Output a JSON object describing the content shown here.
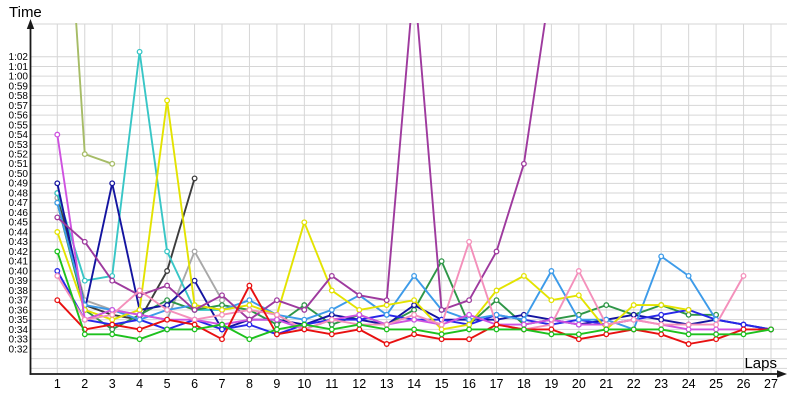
{
  "chart_data": {
    "type": "line",
    "title": "",
    "xlabel": "Laps",
    "ylabel": "Time",
    "x_axis": {
      "min": 1,
      "max": 27,
      "tick_labels": [
        "1",
        "2",
        "3",
        "4",
        "5",
        "6",
        "7",
        "8",
        "9",
        "10",
        "11",
        "12",
        "13",
        "14",
        "15",
        "16",
        "17",
        "18",
        "19",
        "20",
        "21",
        "22",
        "23",
        "24",
        "25",
        "26",
        "27"
      ]
    },
    "y_axis": {
      "unit": "m:ss",
      "min_seconds": 32,
      "max_seconds": 62,
      "step_seconds": 1,
      "tick_labels_bottom_to_top": [
        "0:32",
        "0:33",
        "0:34",
        "0:35",
        "0:36",
        "0:37",
        "0:38",
        "0:39",
        "0:40",
        "0:41",
        "0:42",
        "0:43",
        "0:44",
        "0:45",
        "0:46",
        "0:47",
        "0:48",
        "0:49",
        "0:50",
        "0:51",
        "0:52",
        "0:53",
        "0:54",
        "0:55",
        "0:56",
        "0:57",
        "0:58",
        "0:59",
        "1:00",
        "1:01",
        "1:02"
      ]
    },
    "grid": {
      "horizontal": true,
      "vertical": true,
      "color": "#d6d6d6",
      "extra_unlabeled_rows_seconds": [
        31,
        30
      ]
    },
    "legend": "none",
    "note": "lap-time chart; values in seconds; values above 62 run off the top of the plot; series start at lap 1 and may end early",
    "series": [
      {
        "name": "gray",
        "color": "#a8a8a8",
        "values": [
          47.5,
          37,
          36,
          35.5,
          35,
          42,
          37
        ]
      },
      {
        "name": "dark-gray",
        "color": "#3c3c3c",
        "values": [
          48,
          36.5,
          35.5,
          35,
          40,
          49.5
        ]
      },
      {
        "name": "olive",
        "color": "#a6bc66",
        "values": [
          95,
          52,
          51
        ]
      },
      {
        "name": "cyan",
        "color": "#38c6c6",
        "values": [
          48,
          39,
          39.5,
          62.5,
          42,
          36,
          36
        ]
      },
      {
        "name": "dark-green",
        "color": "#2e9647",
        "values": [
          47,
          36,
          34,
          35.5,
          37,
          36,
          36.5,
          36,
          34.5,
          36.5,
          34.5,
          35.5,
          34.5,
          36,
          41,
          34.5,
          37,
          34.5,
          35,
          35.5,
          36.5,
          35.5,
          36.5,
          35.5,
          35.5
        ]
      },
      {
        "name": "navy",
        "color": "#1414a0",
        "values": [
          49,
          36,
          49,
          36,
          36.5,
          39,
          34,
          35,
          35,
          34.5,
          35.5,
          35,
          34.5,
          36.5,
          35,
          35,
          35,
          35.5,
          35,
          34.5,
          35,
          35.5,
          35,
          34.5,
          35,
          34.5,
          34
        ]
      },
      {
        "name": "blue",
        "color": "#2727e8",
        "values": [
          40,
          35,
          34.5,
          35,
          34,
          35,
          34,
          34.5,
          33.5,
          34.5,
          35,
          35,
          35.5,
          35,
          35,
          34.5,
          35.5,
          35,
          34.5,
          35,
          34.5,
          35,
          35.5,
          36,
          35,
          34.5,
          34
        ]
      },
      {
        "name": "light-blue",
        "color": "#3d9be9",
        "values": [
          47,
          36.5,
          36,
          35,
          36,
          36.5,
          36,
          37,
          35.5,
          35,
          36,
          37.5,
          35.5,
          39.5,
          36,
          35,
          35.5,
          35,
          40,
          35,
          35,
          34,
          41.5,
          39.5,
          35
        ]
      },
      {
        "name": "yellow",
        "color": "#e3e300",
        "values": [
          44,
          36,
          35,
          36,
          57.5,
          36.5,
          36,
          36.5,
          35.5,
          45,
          38,
          36,
          36.5,
          37,
          34,
          34.5,
          38,
          39.5,
          37,
          37.5,
          34,
          36.5,
          36.5,
          36
        ]
      },
      {
        "name": "violet",
        "color": "#cf52e0",
        "values": [
          54,
          35,
          36,
          35.5,
          35,
          35,
          34.5,
          35,
          35,
          34,
          35,
          35.5,
          34.5,
          35,
          34.5,
          35.5,
          34.5,
          34.5,
          35,
          34.5,
          34.5,
          35,
          34.5,
          34,
          34,
          34
        ]
      },
      {
        "name": "purple",
        "color": "#9e3a9e",
        "values": [
          45.5,
          43,
          39,
          37.5,
          38.5,
          36,
          37.5,
          35,
          37,
          36,
          39.5,
          37.5,
          37,
          70,
          36,
          37,
          42,
          51,
          70
        ]
      },
      {
        "name": "pink",
        "color": "#f490bb",
        "values": [
          39.5,
          35,
          35.5,
          38,
          36,
          35,
          35.5,
          36,
          35.5,
          34,
          35,
          34.5,
          34.5,
          35.5,
          34.5,
          43,
          34.5,
          34,
          34.5,
          40,
          34.5,
          35,
          34.5,
          34.5,
          34.5,
          39.5
        ]
      },
      {
        "name": "red",
        "color": "#e81010",
        "values": [
          37,
          34,
          34.5,
          34,
          35,
          34.5,
          33,
          38.5,
          33.5,
          34,
          33.5,
          34,
          32.5,
          33.5,
          33,
          33,
          34.5,
          34,
          34,
          33,
          33.5,
          34,
          33.5,
          32.5,
          33,
          34,
          34
        ]
      },
      {
        "name": "green",
        "color": "#1dc11d",
        "values": [
          42,
          33.5,
          33.5,
          33,
          34,
          34,
          34.5,
          33,
          34,
          34.5,
          34,
          34.5,
          34,
          34,
          33.5,
          34,
          34,
          34,
          33.5,
          33.5,
          34,
          34,
          34,
          33.5,
          33.5,
          33.5,
          34
        ]
      }
    ]
  },
  "layout_text": {
    "y_axis_title": "Time",
    "x_axis_title": "Laps"
  },
  "style": {
    "background": "#ffffff",
    "grid_color": "#d6d6d6",
    "axis_color": "#1a1a1a",
    "label_color": "#000000",
    "marker_fill": "#ffffff"
  }
}
